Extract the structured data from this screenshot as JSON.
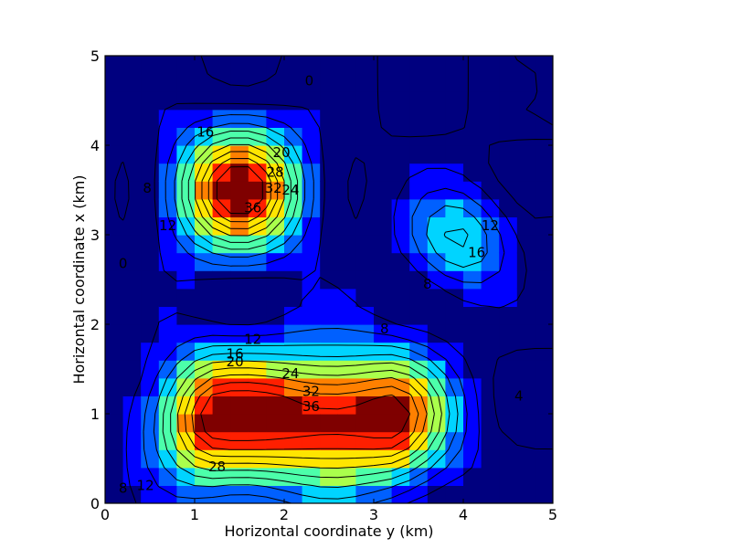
{
  "chart_data": {
    "type": "heatmap",
    "subtype": "filled-contour",
    "title": "",
    "xlabel": "Horizontal coordinate y (km)",
    "ylabel": "Horizontal coordinate x (km)",
    "xlim": [
      0,
      5
    ],
    "ylim": [
      0,
      5
    ],
    "xticks": [
      "0",
      "1",
      "2",
      "3",
      "4",
      "5"
    ],
    "yticks": [
      "0",
      "1",
      "2",
      "3",
      "4",
      "5"
    ],
    "colormap": "jet",
    "contour_levels": [
      0,
      4,
      8,
      12,
      16,
      20,
      24,
      28,
      32,
      36,
      40
    ],
    "colors": [
      "#00007f",
      "#0000ff",
      "#0060ff",
      "#00d4ff",
      "#4cffaa",
      "#aaff4c",
      "#ffe500",
      "#ff8000",
      "#ff1f00",
      "#7f0000"
    ],
    "features": [
      {
        "type": "peak",
        "center": [
          1.5,
          3.5
        ],
        "peak_value": 40
      },
      {
        "type": "peak",
        "center": [
          3.95,
          2.95
        ],
        "peak_value": 17
      },
      {
        "type": "ridge",
        "from": [
          1.3,
          0.95
        ],
        "to": [
          3.1,
          0.95
        ],
        "peak_value": 40
      }
    ],
    "contour_labels": [
      {
        "text": "0",
        "x": 2.28,
        "y": 4.72
      },
      {
        "text": "0",
        "x": 0.2,
        "y": 2.68
      },
      {
        "text": "16",
        "x": 1.12,
        "y": 4.15
      },
      {
        "text": "20",
        "x": 1.97,
        "y": 3.92
      },
      {
        "text": "28",
        "x": 1.9,
        "y": 3.7
      },
      {
        "text": "32",
        "x": 1.88,
        "y": 3.52
      },
      {
        "text": "24",
        "x": 2.07,
        "y": 3.5
      },
      {
        "text": "36",
        "x": 1.65,
        "y": 3.3
      },
      {
        "text": "8",
        "x": 0.47,
        "y": 3.52
      },
      {
        "text": "12",
        "x": 0.7,
        "y": 3.1
      },
      {
        "text": "12",
        "x": 4.3,
        "y": 3.1
      },
      {
        "text": "16",
        "x": 4.15,
        "y": 2.8
      },
      {
        "text": "8",
        "x": 3.6,
        "y": 2.45
      },
      {
        "text": "8",
        "x": 3.12,
        "y": 1.95
      },
      {
        "text": "12",
        "x": 1.65,
        "y": 1.83
      },
      {
        "text": "16",
        "x": 1.45,
        "y": 1.67
      },
      {
        "text": "20",
        "x": 1.45,
        "y": 1.58
      },
      {
        "text": "24",
        "x": 2.07,
        "y": 1.45
      },
      {
        "text": "32",
        "x": 2.3,
        "y": 1.25
      },
      {
        "text": "36",
        "x": 2.3,
        "y": 1.08
      },
      {
        "text": "28",
        "x": 1.25,
        "y": 0.41
      },
      {
        "text": "12",
        "x": 0.45,
        "y": 0.2
      },
      {
        "text": "8",
        "x": 0.2,
        "y": 0.17
      },
      {
        "text": "4",
        "x": 4.62,
        "y": 1.2
      }
    ]
  }
}
